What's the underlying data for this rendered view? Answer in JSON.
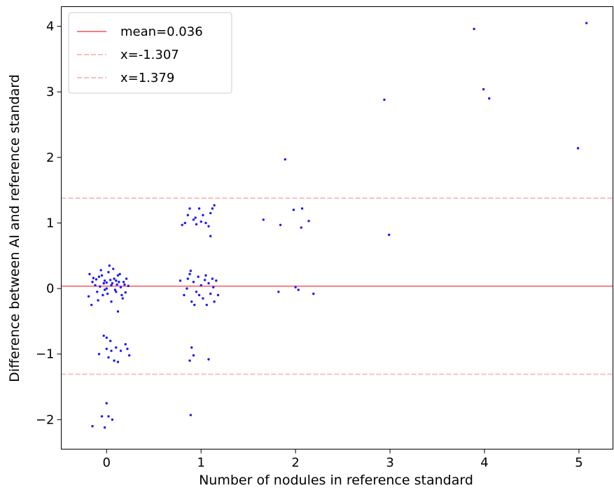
{
  "chart_data": {
    "type": "scatter",
    "title": "",
    "xlabel": "Number of nodules in reference standard",
    "ylabel": "Difference between AI and reference standard",
    "xlim": [
      -0.48,
      5.36
    ],
    "ylim": [
      -2.45,
      4.3
    ],
    "xticks": [
      0,
      1,
      2,
      3,
      4,
      5
    ],
    "yticks": [
      -2,
      -1,
      0,
      1,
      2,
      3,
      4
    ],
    "grid": false,
    "legend_position": "top-left",
    "colors": {
      "points": "#1a1aff",
      "mean_line": "#f08080",
      "limit_line": "#f7c0c0",
      "axes": "#000000",
      "legend_border": "#cccccc"
    },
    "lines": [
      {
        "label": "mean=0.036",
        "y": 0.036,
        "style": "solid"
      },
      {
        "label": "x=-1.307",
        "y": -1.307,
        "style": "dashed"
      },
      {
        "label": "x=1.379",
        "y": 1.379,
        "style": "dashed"
      }
    ],
    "points": [
      [
        -0.18,
        0.22
      ],
      [
        -0.15,
        0.1
      ],
      [
        -0.12,
        0.05
      ],
      [
        -0.1,
        -0.05
      ],
      [
        -0.08,
        0.18
      ],
      [
        -0.06,
        0.28
      ],
      [
        -0.04,
        -0.1
      ],
      [
        -0.02,
        0.12
      ],
      [
        0.0,
        0.0
      ],
      [
        0.02,
        0.25
      ],
      [
        0.03,
        0.35
      ],
      [
        0.05,
        -0.2
      ],
      [
        0.06,
        0.08
      ],
      [
        0.08,
        0.15
      ],
      [
        0.1,
        -0.05
      ],
      [
        0.12,
        0.2
      ],
      [
        0.13,
        0.1
      ],
      [
        0.15,
        0.02
      ],
      [
        0.17,
        -0.15
      ],
      [
        0.19,
        0.06
      ],
      [
        0.21,
        0.15
      ],
      [
        0.23,
        0.04
      ],
      [
        -0.19,
        -0.12
      ],
      [
        -0.16,
        -0.25
      ],
      [
        -0.11,
        0.14
      ],
      [
        -0.09,
        -0.18
      ],
      [
        -0.07,
        0.03
      ],
      [
        -0.05,
        0.2
      ],
      [
        -0.03,
        0.08
      ],
      [
        0.01,
        -0.08
      ],
      [
        0.04,
        0.13
      ],
      [
        0.07,
        0.3
      ],
      [
        0.09,
        -0.02
      ],
      [
        0.11,
        0.06
      ],
      [
        0.14,
        0.22
      ],
      [
        0.16,
        -0.1
      ],
      [
        0.18,
        0.1
      ],
      [
        0.2,
        -0.06
      ],
      [
        0.12,
        -0.35
      ],
      [
        -0.14,
        0.16
      ],
      [
        0.05,
        0.05
      ],
      [
        -0.02,
        -0.02
      ],
      [
        0.0,
        0.09
      ],
      [
        0.1,
        0.12
      ],
      [
        -0.03,
        -0.72
      ],
      [
        0.0,
        -0.75
      ],
      [
        -0.08,
        -1.0
      ],
      [
        0.0,
        -0.92
      ],
      [
        0.02,
        -1.05
      ],
      [
        0.05,
        -0.95
      ],
      [
        0.08,
        -1.1
      ],
      [
        0.1,
        -0.9
      ],
      [
        0.12,
        -1.12
      ],
      [
        0.15,
        -0.95
      ],
      [
        0.2,
        -0.85
      ],
      [
        0.22,
        -0.92
      ],
      [
        0.24,
        -1.02
      ],
      [
        0.04,
        -0.8
      ],
      [
        -0.15,
        -2.1
      ],
      [
        -0.05,
        -1.95
      ],
      [
        0.0,
        -1.75
      ],
      [
        0.02,
        -1.95
      ],
      [
        0.06,
        -2.0
      ],
      [
        -0.02,
        -2.12
      ],
      [
        0.78,
        0.12
      ],
      [
        0.82,
        -0.1
      ],
      [
        0.85,
        0.0
      ],
      [
        0.88,
        0.22
      ],
      [
        0.9,
        -0.2
      ],
      [
        0.92,
        0.1
      ],
      [
        0.95,
        -0.05
      ],
      [
        0.97,
        0.18
      ],
      [
        1.0,
        0.05
      ],
      [
        1.02,
        -0.15
      ],
      [
        1.04,
        0.13
      ],
      [
        1.06,
        -0.25
      ],
      [
        1.08,
        0.08
      ],
      [
        1.1,
        -0.08
      ],
      [
        1.12,
        0.15
      ],
      [
        1.14,
        -0.2
      ],
      [
        1.16,
        0.12
      ],
      [
        1.18,
        -0.1
      ],
      [
        0.89,
        0.27
      ],
      [
        0.93,
        -0.25
      ],
      [
        1.05,
        0.2
      ],
      [
        1.13,
        0.02
      ],
      [
        0.86,
        0.15
      ],
      [
        0.98,
        -0.1
      ],
      [
        0.8,
        0.97
      ],
      [
        0.83,
        1.0
      ],
      [
        0.86,
        1.12
      ],
      [
        0.88,
        1.22
      ],
      [
        0.92,
        1.05
      ],
      [
        0.95,
        0.98
      ],
      [
        0.98,
        1.22
      ],
      [
        1.0,
        1.02
      ],
      [
        1.02,
        1.12
      ],
      [
        1.05,
        1.0
      ],
      [
        1.08,
        0.95
      ],
      [
        1.1,
        1.15
      ],
      [
        1.12,
        1.22
      ],
      [
        1.14,
        1.27
      ],
      [
        1.1,
        0.8
      ],
      [
        0.94,
        1.08
      ],
      [
        0.88,
        -1.1
      ],
      [
        0.9,
        -0.9
      ],
      [
        0.92,
        -1.02
      ],
      [
        1.08,
        -1.08
      ],
      [
        0.89,
        -1.93
      ],
      [
        1.66,
        1.05
      ],
      [
        1.84,
        0.97
      ],
      [
        1.89,
        1.97
      ],
      [
        1.98,
        1.2
      ],
      [
        2.07,
        1.22
      ],
      [
        2.14,
        1.03
      ],
      [
        2.06,
        0.93
      ],
      [
        1.82,
        -0.05
      ],
      [
        2.0,
        0.02
      ],
      [
        2.03,
        -0.02
      ],
      [
        2.19,
        -0.08
      ],
      [
        2.94,
        2.88
      ],
      [
        2.99,
        0.82
      ],
      [
        3.89,
        3.96
      ],
      [
        3.99,
        3.04
      ],
      [
        4.05,
        2.9
      ],
      [
        4.99,
        2.14
      ],
      [
        5.08,
        4.05
      ]
    ]
  }
}
